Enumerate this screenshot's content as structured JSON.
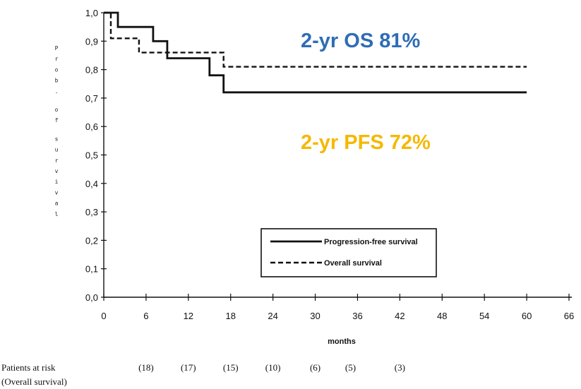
{
  "chart_data": {
    "type": "line",
    "xlabel": "months",
    "ylabel": "Prob. of survival",
    "x_ticks": [
      "0",
      "6",
      "12",
      "18",
      "24",
      "30",
      "36",
      "42",
      "48",
      "54",
      "60",
      "66"
    ],
    "y_ticks": [
      "0,0",
      "0,1",
      "0,2",
      "0,3",
      "0,4",
      "0,5",
      "0,6",
      "0,7",
      "0,8",
      "0,9",
      "1,0"
    ],
    "xlim": [
      0,
      66
    ],
    "ylim": [
      0,
      1
    ],
    "grid": false,
    "legend": "lower-center",
    "series": [
      {
        "name": "Progression-free survival",
        "style": "solid",
        "x": [
          0,
          2,
          2,
          7,
          7,
          9,
          9,
          15,
          15,
          17,
          17,
          60
        ],
        "y": [
          1.0,
          1.0,
          0.95,
          0.95,
          0.9,
          0.9,
          0.84,
          0.84,
          0.78,
          0.78,
          0.72,
          0.72
        ]
      },
      {
        "name": "Overall survival",
        "style": "dashed",
        "x": [
          0,
          1,
          1,
          5,
          5,
          17,
          17,
          60
        ],
        "y": [
          1.0,
          1.0,
          0.91,
          0.91,
          0.86,
          0.86,
          0.81,
          0.81
        ]
      }
    ],
    "annotations": [
      {
        "text": "2-yr OS 81%",
        "color": "#2e6db4"
      },
      {
        "text": "2-yr PFS 72%",
        "color": "#f5b800"
      }
    ],
    "risk_table": {
      "label_line1": "Patients at risk",
      "label_line2": "(Overall survival)",
      "entries": [
        {
          "x": 6,
          "value": "(18)"
        },
        {
          "x": 12,
          "value": "(17)"
        },
        {
          "x": 18,
          "value": "(15)"
        },
        {
          "x": 24,
          "value": "(10)"
        },
        {
          "x": 30,
          "value": "(6)"
        },
        {
          "x": 35,
          "value": "(5)"
        },
        {
          "x": 42,
          "value": "(3)"
        }
      ]
    }
  }
}
